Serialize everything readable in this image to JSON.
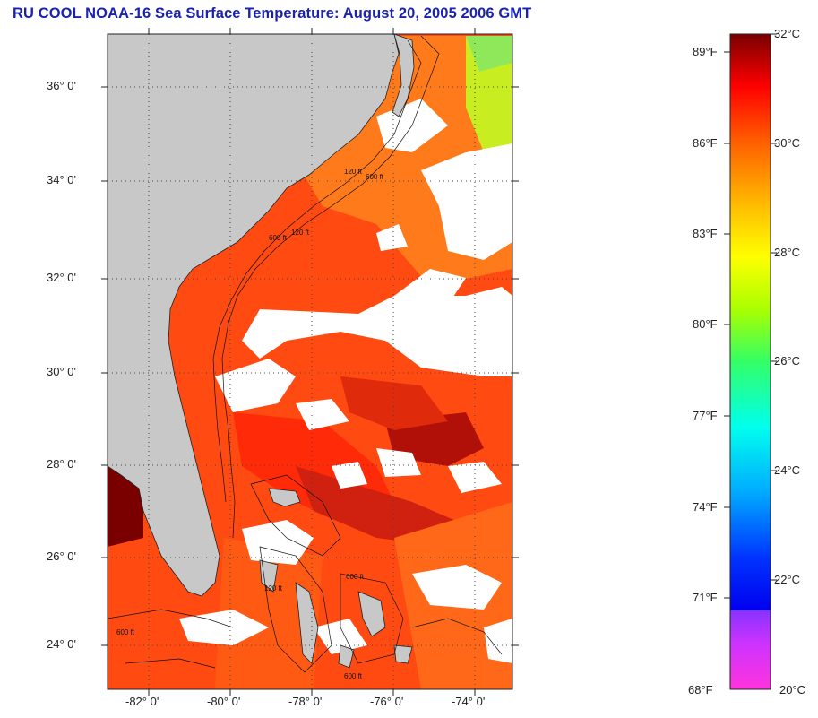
{
  "title": "RU COOL  NOAA-16  Sea Surface Temperature:  August 20, 2005 2006 GMT",
  "map": {
    "lat_labels": [
      "36° 0'",
      "34° 0'",
      "32° 0'",
      "30° 0'",
      "28° 0'",
      "26° 0'",
      "24° 0'"
    ],
    "lon_labels": [
      "-82° 0'",
      "-80° 0'",
      "-78° 0'",
      "-76° 0'",
      "-74° 0'"
    ],
    "contour_labels": [
      "600 ft",
      "120 ft",
      "600 ft",
      "120 ft",
      "600 ft",
      "120 ft",
      "600 ft",
      "600 ft"
    ],
    "colors": {
      "land": "#c8c8c8",
      "cloud": "#ffffff",
      "warm": "#ff3a0a",
      "hot": "#b01008",
      "grid": "#555555"
    }
  },
  "colorbar": {
    "fahrenheit_labels": [
      "89°F",
      "86°F",
      "83°F",
      "80°F",
      "77°F",
      "74°F",
      "71°F",
      "68°F"
    ],
    "celsius_labels": [
      "32°C",
      "30°C",
      "28°C",
      "26°C",
      "24°C",
      "22°C",
      "20°C"
    ],
    "range_c": [
      20,
      32
    ],
    "stops": [
      "#ff33cc",
      "#9933ff",
      "#0000ff",
      "#00bfff",
      "#00ffcc",
      "#33ff33",
      "#ccff00",
      "#ffff00",
      "#ffcc00",
      "#ff8800",
      "#ff3300",
      "#ff0000",
      "#7a0000"
    ]
  }
}
